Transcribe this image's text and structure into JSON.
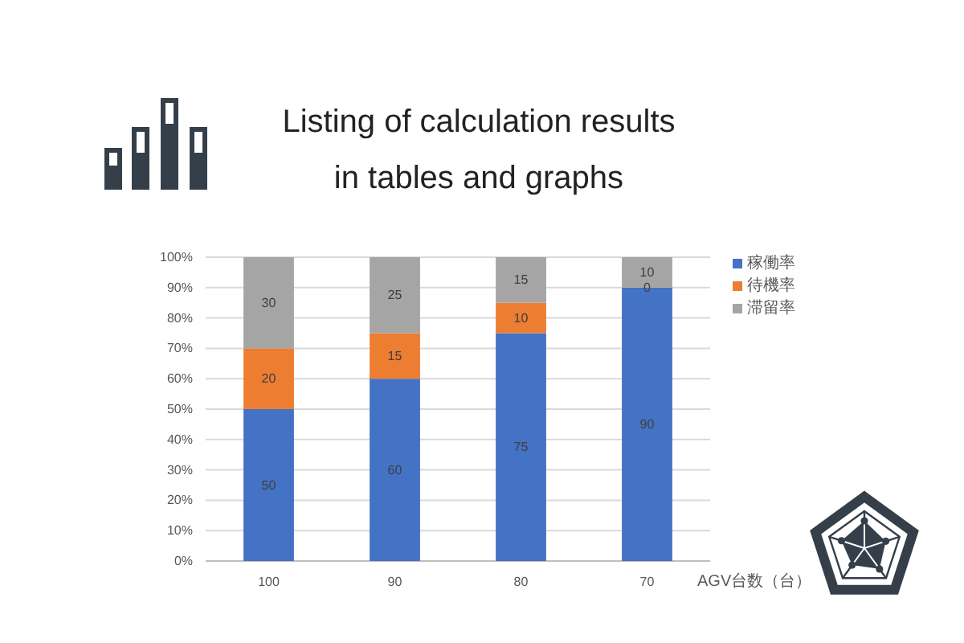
{
  "chart_data": {
    "type": "bar",
    "title": "Listing of calculation results in tables and graphs",
    "xlabel": "AGV台数（台）",
    "categories": [
      "100",
      "90",
      "80",
      "70"
    ],
    "stacked": true,
    "series": [
      {
        "name": "稼働率",
        "color": "#4472c4",
        "values": [
          50,
          60,
          75,
          90
        ]
      },
      {
        "name": "待機率",
        "color": "#ed7d31",
        "values": [
          20,
          15,
          10,
          0
        ]
      },
      {
        "name": "滞留率",
        "color": "#a5a5a5",
        "values": [
          30,
          25,
          15,
          10
        ]
      }
    ],
    "ylim": [
      0,
      100
    ],
    "yticks": [
      {
        "value": 0,
        "label": "0%"
      },
      {
        "value": 10,
        "label": "10%"
      },
      {
        "value": 20,
        "label": "20%"
      },
      {
        "value": 30,
        "label": "30%"
      },
      {
        "value": 40,
        "label": "40%"
      },
      {
        "value": 50,
        "label": "50%"
      },
      {
        "value": 60,
        "label": "60%"
      },
      {
        "value": 70,
        "label": "70%"
      },
      {
        "value": 80,
        "label": "80%"
      },
      {
        "value": 90,
        "label": "90%"
      },
      {
        "value": 100,
        "label": "100%"
      }
    ],
    "grid": "y",
    "legend": "top right",
    "data_labels": true
  }
}
